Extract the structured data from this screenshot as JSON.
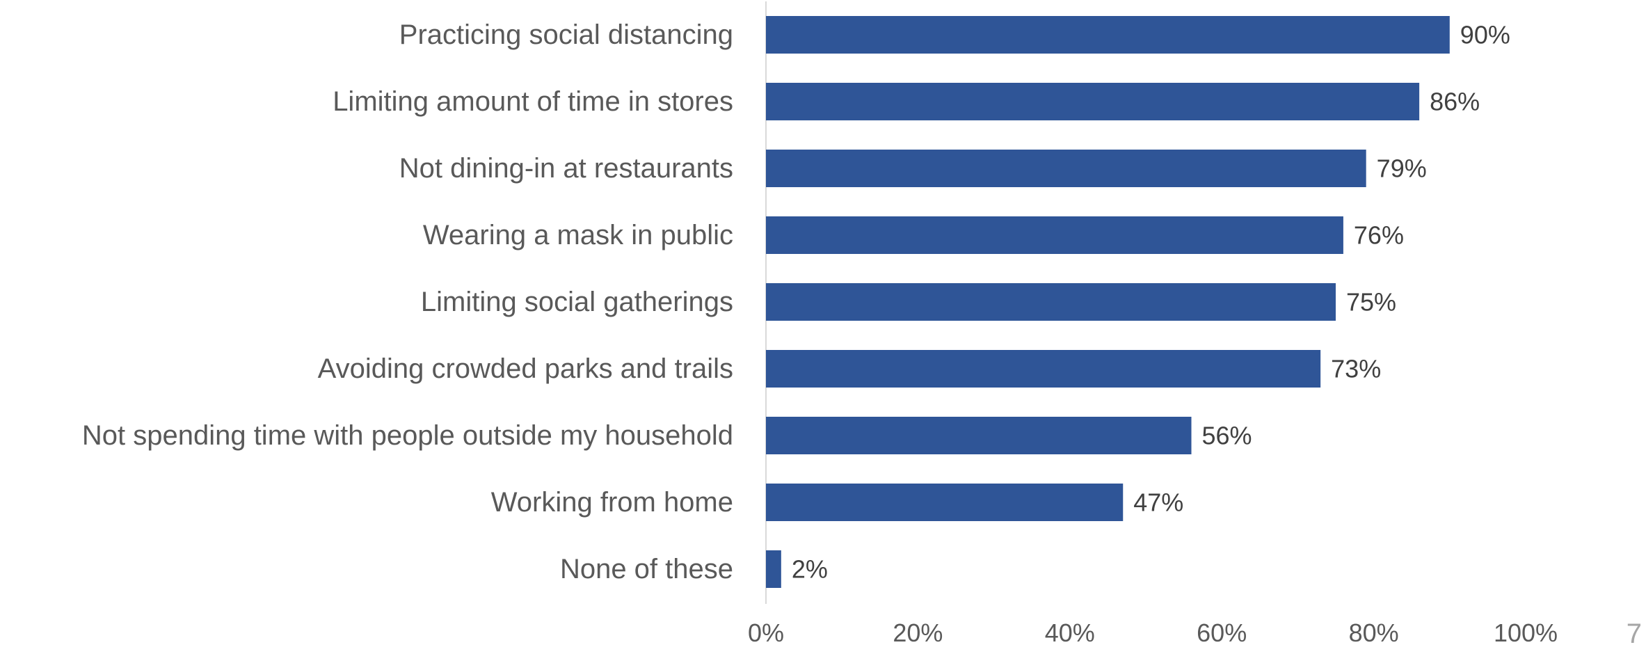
{
  "chart_data": {
    "type": "bar",
    "orientation": "horizontal",
    "title": "",
    "xlabel": "",
    "ylabel": "",
    "categories": [
      "Practicing social distancing",
      "Limiting amount of time in stores",
      "Not dining-in at restaurants",
      "Wearing a mask in public",
      "Limiting social gatherings",
      "Avoiding crowded parks and trails",
      "Not spending time with people outside my household",
      "Working from home",
      "None of these"
    ],
    "values": [
      90,
      86,
      79,
      76,
      75,
      73,
      56,
      47,
      2
    ],
    "value_labels": [
      "90%",
      "86%",
      "79%",
      "76%",
      "75%",
      "73%",
      "56%",
      "47%",
      "2%"
    ],
    "xlim": [
      0,
      100
    ],
    "x_ticks": [
      0,
      20,
      40,
      60,
      80,
      100
    ],
    "x_tick_labels": [
      "0%",
      "20%",
      "40%",
      "60%",
      "80%",
      "100%"
    ],
    "grid": false,
    "legend": "none",
    "bar_color": "#2F5597",
    "axis_color": "#D9D9D9"
  },
  "page_number": "7"
}
